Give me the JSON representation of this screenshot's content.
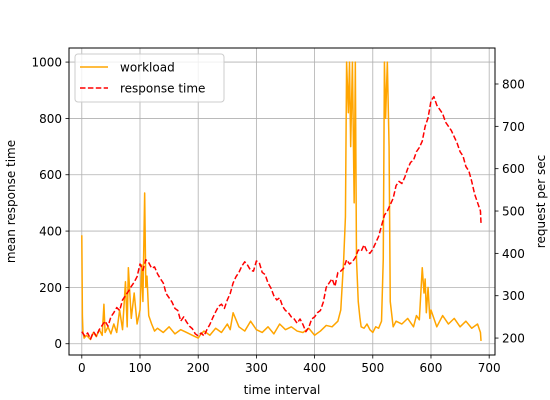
{
  "chart_data": {
    "type": "line",
    "title": "",
    "xlabel": "time interval",
    "ylabel_left": "mean response time",
    "ylabel_right": "request per sec",
    "xlim": [
      -22,
      710
    ],
    "ylim_left": [
      -40,
      1050
    ],
    "ylim_right": [
      160,
      885
    ],
    "x_ticks": [
      0,
      100,
      200,
      300,
      400,
      500,
      600,
      700
    ],
    "y_left_ticks": [
      0,
      200,
      400,
      600,
      800,
      1000
    ],
    "y_right_ticks": [
      200,
      300,
      400,
      500,
      600,
      700,
      800
    ],
    "grid": true,
    "legend_position": "top-left",
    "colors": {
      "workload": "#ffa500",
      "response_time": "#ff0000"
    },
    "series": [
      {
        "name": "workload",
        "axis": "left",
        "style": "solid",
        "x": [
          0,
          1,
          2,
          4,
          8,
          15,
          20,
          25,
          30,
          35,
          38,
          40,
          45,
          50,
          55,
          60,
          65,
          70,
          75,
          78,
          80,
          85,
          90,
          95,
          100,
          103,
          105,
          108,
          110,
          112,
          115,
          120,
          125,
          130,
          140,
          150,
          160,
          170,
          180,
          190,
          200,
          205,
          210,
          220,
          230,
          240,
          250,
          255,
          260,
          270,
          280,
          290,
          300,
          310,
          320,
          330,
          340,
          350,
          360,
          370,
          380,
          390,
          400,
          410,
          420,
          430,
          440,
          445,
          450,
          453,
          455,
          458,
          460,
          462,
          465,
          468,
          470,
          472,
          475,
          478,
          480,
          485,
          490,
          495,
          500,
          505,
          510,
          515,
          518,
          520,
          522,
          525,
          528,
          530,
          535,
          540,
          550,
          560,
          570,
          575,
          580,
          585,
          588,
          590,
          592,
          595,
          598,
          600,
          610,
          620,
          630,
          640,
          650,
          660,
          670,
          680,
          685,
          686
        ],
        "values": [
          385,
          100,
          40,
          20,
          30,
          15,
          40,
          25,
          50,
          30,
          140,
          40,
          60,
          35,
          70,
          40,
          120,
          50,
          220,
          60,
          270,
          90,
          180,
          70,
          120,
          280,
          150,
          535,
          200,
          240,
          100,
          70,
          45,
          55,
          40,
          60,
          35,
          50,
          40,
          30,
          20,
          35,
          45,
          30,
          55,
          40,
          70,
          50,
          110,
          60,
          45,
          80,
          50,
          40,
          60,
          35,
          70,
          50,
          60,
          45,
          40,
          55,
          30,
          45,
          65,
          60,
          80,
          120,
          300,
          450,
          1000,
          820,
          1000,
          700,
          1000,
          500,
          1000,
          300,
          150,
          90,
          60,
          55,
          70,
          50,
          40,
          60,
          55,
          80,
          300,
          1000,
          800,
          1000,
          700,
          150,
          60,
          80,
          70,
          90,
          60,
          100,
          85,
          270,
          180,
          230,
          110,
          200,
          90,
          120,
          60,
          100,
          70,
          90,
          60,
          80,
          55,
          70,
          40,
          10
        ]
      },
      {
        "name": "response time",
        "axis": "right",
        "style": "dashed",
        "x": [
          0,
          5,
          10,
          15,
          20,
          25,
          30,
          35,
          40,
          45,
          50,
          55,
          60,
          65,
          70,
          75,
          80,
          85,
          90,
          95,
          100,
          105,
          110,
          115,
          120,
          125,
          130,
          135,
          140,
          145,
          150,
          155,
          160,
          165,
          170,
          175,
          180,
          185,
          190,
          195,
          200,
          205,
          210,
          215,
          220,
          225,
          230,
          235,
          240,
          245,
          250,
          255,
          260,
          265,
          270,
          275,
          280,
          285,
          290,
          295,
          300,
          305,
          310,
          315,
          320,
          325,
          330,
          335,
          340,
          345,
          350,
          355,
          360,
          365,
          370,
          375,
          380,
          385,
          390,
          395,
          400,
          405,
          410,
          415,
          420,
          425,
          430,
          435,
          440,
          445,
          450,
          455,
          460,
          465,
          470,
          475,
          480,
          485,
          490,
          495,
          500,
          505,
          510,
          515,
          520,
          525,
          530,
          535,
          540,
          545,
          550,
          555,
          560,
          565,
          570,
          575,
          580,
          585,
          590,
          595,
          600,
          605,
          610,
          615,
          620,
          625,
          630,
          635,
          640,
          645,
          650,
          655,
          660,
          665,
          670,
          675,
          680,
          685,
          686
        ],
        "values": [
          215,
          205,
          212,
          198,
          215,
          205,
          220,
          230,
          240,
          228,
          250,
          260,
          272,
          265,
          290,
          300,
          310,
          322,
          332,
          345,
          375,
          360,
          385,
          378,
          365,
          368,
          352,
          340,
          330,
          305,
          295,
          285,
          270,
          265,
          240,
          250,
          238,
          228,
          222,
          210,
          205,
          212,
          205,
          220,
          232,
          248,
          262,
          275,
          280,
          270,
          290,
          305,
          330,
          345,
          355,
          370,
          380,
          372,
          360,
          358,
          382,
          378,
          355,
          350,
          330,
          318,
          300,
          290,
          295,
          275,
          265,
          260,
          250,
          245,
          235,
          245,
          232,
          215,
          225,
          245,
          250,
          260,
          265,
          285,
          320,
          330,
          340,
          322,
          355,
          358,
          365,
          385,
          375,
          380,
          390,
          408,
          405,
          420,
          405,
          400,
          410,
          425,
          440,
          465,
          490,
          500,
          515,
          530,
          560,
          570,
          565,
          580,
          600,
          615,
          620,
          640,
          650,
          665,
          700,
          720,
          760,
          770,
          750,
          740,
          730,
          710,
          700,
          690,
          675,
          660,
          640,
          630,
          605,
          595,
          570,
          540,
          520,
          500,
          470
        ]
      }
    ]
  }
}
